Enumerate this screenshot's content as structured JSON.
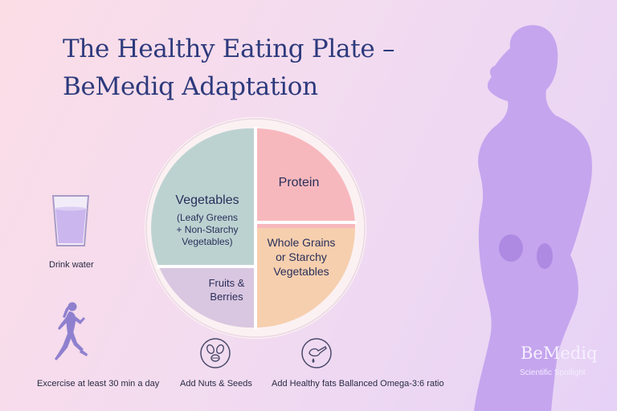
{
  "title": {
    "line1": "The Healthy Eating Plate –",
    "line2": "BeMediq Adaptation"
  },
  "plate": {
    "vegetables": {
      "label": "Vegetables",
      "sub1": "(Leafy Greens",
      "sub2": "+ Non-Starchy",
      "sub3": "Vegetables)",
      "color": "#bcd2d1"
    },
    "protein": {
      "label": "Protein",
      "color": "#f7b8bd"
    },
    "grains": {
      "line1": "Whole Grains",
      "line2": "or Starchy",
      "line3": "Vegetables",
      "color": "#f6cfae"
    },
    "fruits": {
      "line1": "Fruits &",
      "line2": "Berries",
      "color": "#d9c6e0"
    }
  },
  "tips": {
    "water": {
      "label": "Drink water",
      "icon": "glass-icon"
    },
    "exercise": {
      "label": "Excercise at least 30 min a day",
      "icon": "runner-icon"
    },
    "nuts": {
      "label": "Add Nuts & Seeds",
      "icon": "nuts-icon"
    },
    "fats": {
      "label": "Add Healthy fats Ballanced Omega-3:6 ratio",
      "icon": "oil-dropper-icon"
    }
  },
  "brand": {
    "name": "BeMediq",
    "tagline": "Scientific Spotlight"
  },
  "colors": {
    "title": "#2d3a7c",
    "silhouette": "#c5a5ee",
    "plate_rim": "#fbf1f3",
    "divider": "#ffffff"
  }
}
